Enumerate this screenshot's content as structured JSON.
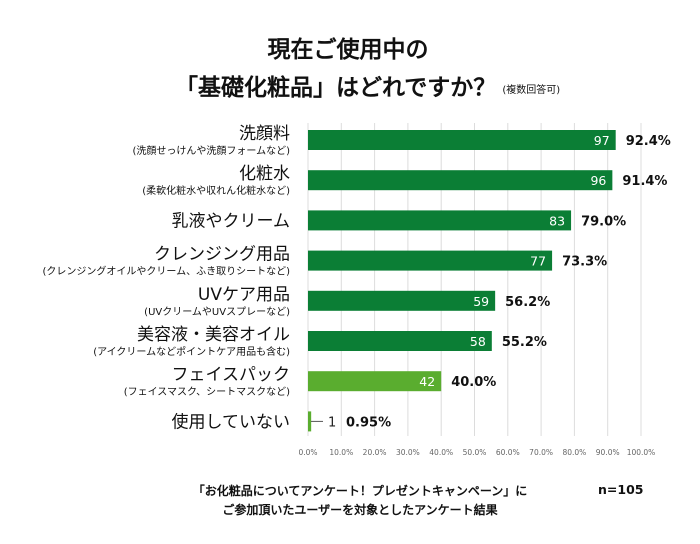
{
  "title": {
    "line1": "現在ご使用中の",
    "line2": "「基礎化粧品」はどれですか？",
    "note": "(複数回答可)"
  },
  "footer": {
    "line1": "「お化粧品についてアンケート！プレゼントキャンペーン」に",
    "line2": "ご参加頂いたユーザーを対象としたアンケート結果",
    "n": "n=105"
  },
  "chart_data": {
    "type": "bar",
    "orientation": "horizontal",
    "categories": [
      "洗顔料",
      "化粧水",
      "乳液やクリーム",
      "クレンジング用品",
      "UVケア用品",
      "美容液・美容オイル",
      "フェイスパック",
      "使用していない"
    ],
    "subcategories": [
      "(洗顔せっけんや洗顔フォームなど)",
      "(柔軟化粧水や収れん化粧水など)",
      "",
      "(クレンジングオイルやクリーム、ふき取りシートなど)",
      "(UVクリームやUVスプレーなど)",
      "(アイクリームなどポイントケア用品も含む)",
      "(フェイスマスク、シートマスクなど)",
      ""
    ],
    "counts": [
      97,
      96,
      83,
      77,
      59,
      58,
      42,
      1
    ],
    "percent_labels": [
      "92.4%",
      "91.4%",
      "79.0%",
      "73.3%",
      "56.2%",
      "55.2%",
      "40.0%",
      "0.95%"
    ],
    "values": [
      92.4,
      91.4,
      79.0,
      73.3,
      56.2,
      55.2,
      40.0,
      0.95
    ],
    "xlim": [
      0,
      100
    ],
    "x_ticks": [
      "0.0%",
      "10.0%",
      "20.0%",
      "30.0%",
      "40.0%",
      "50.0%",
      "60.0%",
      "70.0%",
      "80.0%",
      "90.0%",
      "100.0%"
    ],
    "grid": true,
    "colors": [
      "#0b7e35",
      "#0b7e35",
      "#0b7e35",
      "#0b7e35",
      "#0b7e35",
      "#0b7e35",
      "#5aad2f",
      "#5aad2f"
    ]
  }
}
